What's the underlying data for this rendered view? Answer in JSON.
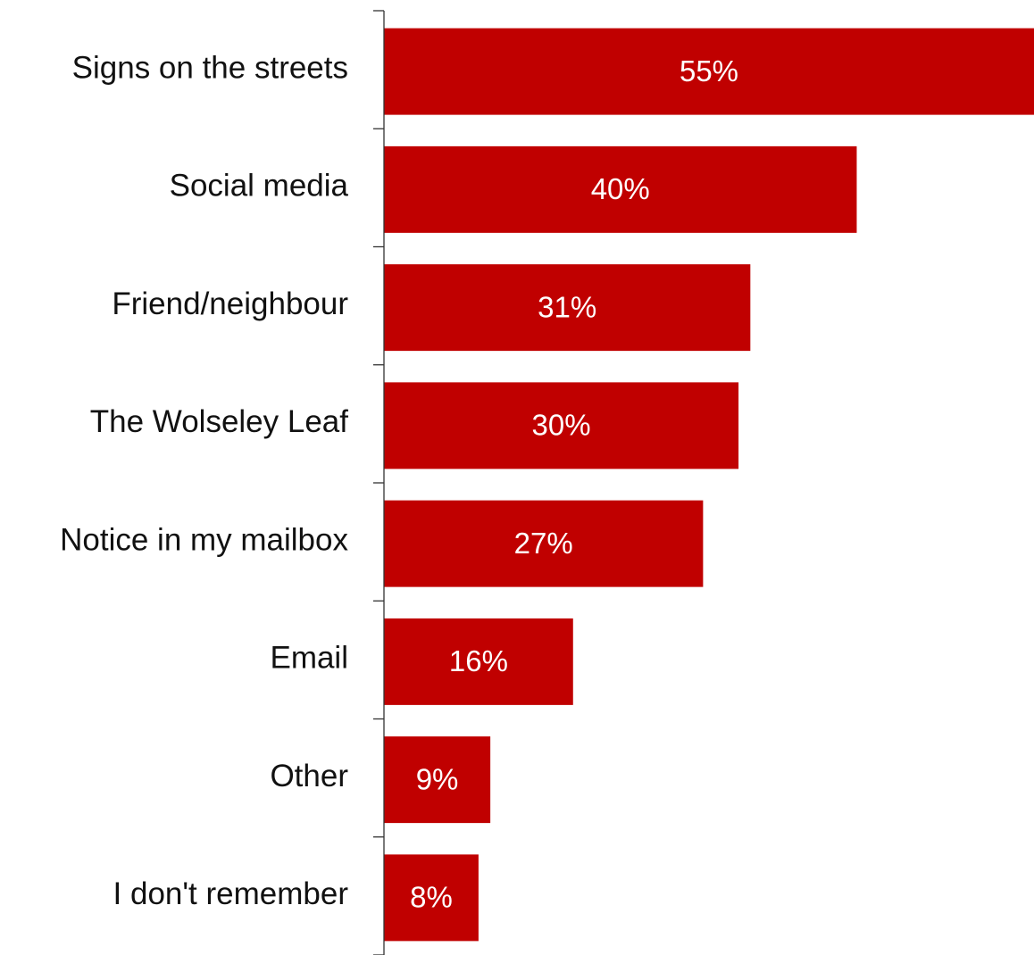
{
  "chart_data": {
    "type": "bar",
    "orientation": "horizontal",
    "categories": [
      "Signs on the streets",
      "Social media",
      "Friend/neighbour",
      "The Wolseley Leaf",
      "Notice in my mailbox",
      "Email",
      "Other",
      "I don't remember"
    ],
    "values": [
      55,
      40,
      31,
      30,
      27,
      16,
      9,
      8
    ],
    "value_labels": [
      "55%",
      "40%",
      "31%",
      "30%",
      "27%",
      "16%",
      "9%",
      "8%"
    ],
    "unit": "%",
    "title": "",
    "xlabel": "",
    "ylabel": "",
    "xlim": [
      0,
      55
    ],
    "grid": false,
    "legend": "none",
    "colors": {
      "bar": "#c00000",
      "value_label": "#ffffff",
      "category_label": "#111111",
      "axis": "#333333"
    }
  }
}
